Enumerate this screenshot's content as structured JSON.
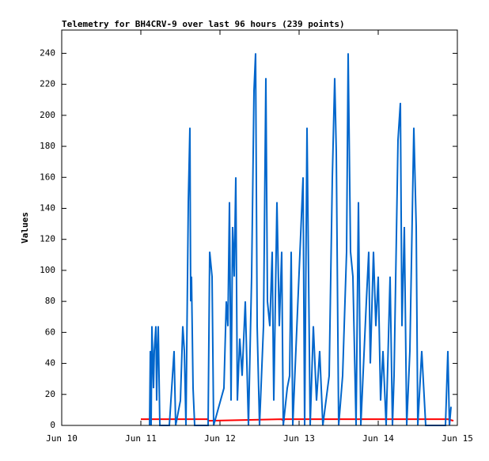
{
  "chart_data": {
    "type": "line",
    "title": "Telemetry for BH4CRV-9 over last 96 hours (239 points)",
    "y_label": "Values",
    "xlim": [
      10,
      15
    ],
    "xticks": [
      {
        "value": 10,
        "label": "Jun 10"
      },
      {
        "value": 11,
        "label": "Jun 11"
      },
      {
        "value": 12,
        "label": "Jun 12"
      },
      {
        "value": 13,
        "label": "Jun 13"
      },
      {
        "value": 14,
        "label": "Jun 14"
      },
      {
        "value": 15,
        "label": "Jun 15"
      }
    ],
    "ylim": [
      0,
      255
    ],
    "yticks": [
      0,
      20,
      40,
      60,
      80,
      100,
      120,
      140,
      160,
      180,
      200,
      220,
      240
    ],
    "series": [
      {
        "color": "#ff0000",
        "x": [
          11.0,
          11.84,
          11.86,
          12.78,
          12.8,
          12.82,
          14.88,
          14.95
        ],
        "values": [
          4,
          4,
          3,
          4,
          3,
          4,
          4,
          3
        ]
      },
      {
        "color": "#0066cc",
        "x": [
          11.11,
          11.12,
          11.13,
          11.14,
          11.16,
          11.17,
          11.19,
          11.2,
          11.21,
          11.22,
          11.24,
          11.36,
          11.4,
          11.42,
          11.44,
          11.5,
          11.53,
          11.55,
          11.57,
          11.6,
          11.62,
          11.63,
          11.64,
          11.66,
          11.68,
          11.85,
          11.87,
          11.9,
          11.92,
          12.05,
          12.08,
          12.1,
          12.12,
          12.14,
          12.16,
          12.18,
          12.2,
          12.22,
          12.25,
          12.28,
          12.32,
          12.36,
          12.4,
          12.43,
          12.45,
          12.47,
          12.5,
          12.55,
          12.58,
          12.6,
          12.63,
          12.66,
          12.68,
          12.72,
          12.75,
          12.78,
          12.8,
          12.85,
          12.88,
          12.9,
          12.92,
          13.05,
          13.07,
          13.1,
          13.12,
          13.14,
          13.18,
          13.22,
          13.26,
          13.3,
          13.38,
          13.42,
          13.45,
          13.47,
          13.5,
          13.55,
          13.6,
          13.62,
          13.65,
          13.68,
          13.72,
          13.75,
          13.78,
          13.85,
          13.88,
          13.9,
          13.94,
          13.97,
          14.0,
          14.03,
          14.06,
          14.1,
          14.15,
          14.18,
          14.2,
          14.25,
          14.28,
          14.3,
          14.33,
          14.36,
          14.4,
          14.45,
          14.48,
          14.5,
          14.55,
          14.6,
          14.85,
          14.88,
          14.9,
          14.92
        ],
        "values": [
          0,
          48,
          0,
          64,
          24,
          48,
          64,
          16,
          48,
          64,
          0,
          0,
          32,
          48,
          0,
          16,
          64,
          48,
          0,
          144,
          192,
          80,
          96,
          24,
          0,
          0,
          112,
          96,
          0,
          24,
          80,
          64,
          144,
          16,
          128,
          96,
          160,
          16,
          56,
          32,
          80,
          0,
          96,
          216,
          240,
          64,
          0,
          64,
          224,
          80,
          64,
          112,
          16,
          144,
          64,
          112,
          0,
          24,
          32,
          112,
          0,
          160,
          0,
          192,
          96,
          0,
          64,
          16,
          48,
          0,
          32,
          160,
          224,
          176,
          0,
          32,
          112,
          240,
          112,
          96,
          0,
          144,
          0,
          80,
          112,
          40,
          112,
          64,
          96,
          16,
          48,
          0,
          96,
          0,
          32,
          184,
          208,
          64,
          128,
          0,
          48,
          192,
          128,
          0,
          48,
          0,
          0,
          48,
          0,
          12
        ]
      }
    ]
  }
}
